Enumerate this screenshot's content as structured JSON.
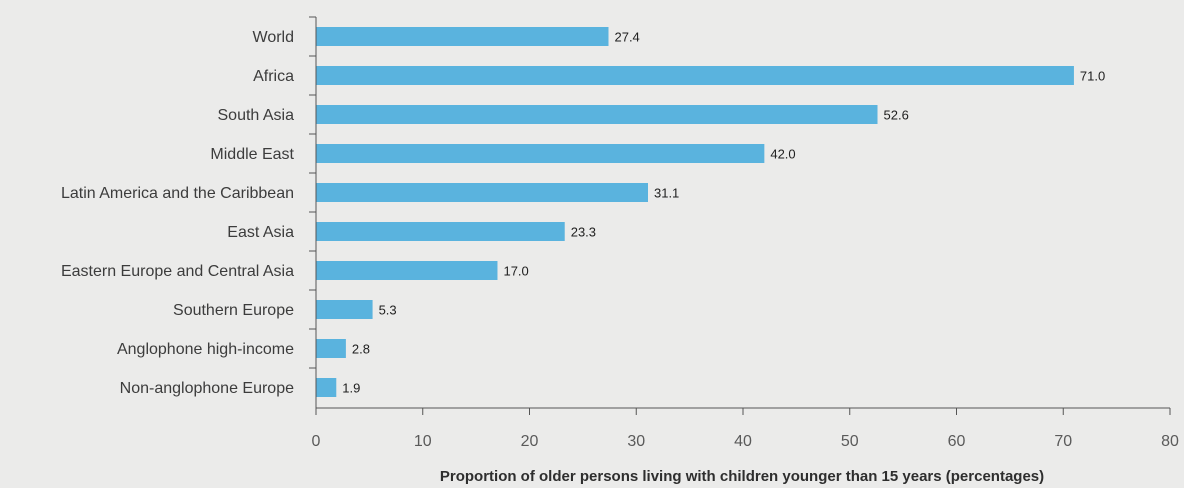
{
  "colors": {
    "bar": "#5ab3de",
    "axis": "#555555",
    "background": "#ebebea"
  },
  "chart_data": {
    "type": "bar",
    "orientation": "horizontal",
    "categories": [
      "World",
      "Africa",
      "South Asia",
      "Middle East",
      "Latin America and the Caribbean",
      "East Asia",
      "Eastern Europe and Central Asia",
      "Southern Europe",
      "Anglophone high-income",
      "Non-anglophone Europe"
    ],
    "values": [
      27.4,
      71.0,
      52.6,
      42.0,
      31.1,
      23.3,
      17.0,
      5.3,
      2.8,
      1.9
    ],
    "value_labels": [
      "27.4",
      "71.0",
      "52.6",
      "42.0",
      "31.1",
      "23.3",
      "17.0",
      "5.3",
      "2.8",
      "1.9"
    ],
    "xlabel": "Proportion of older persons living with children younger than 15 years (percentages)",
    "ylabel": "",
    "xlim": [
      0,
      80
    ],
    "xticks": [
      0,
      10,
      20,
      30,
      40,
      50,
      60,
      70,
      80
    ],
    "grid": false,
    "legend": "none"
  }
}
